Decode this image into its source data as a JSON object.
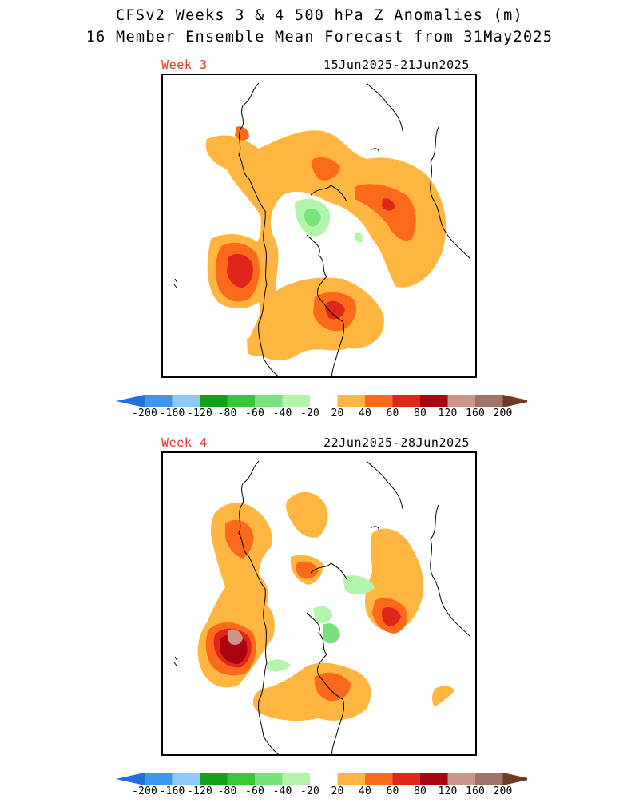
{
  "title": {
    "line1": "CFSv2 Weeks 3 & 4 500 hPa Z Anomalies (m)",
    "line2": "16 Member Ensemble Mean Forecast from 31May2025"
  },
  "panels": [
    {
      "week_label": "Week 3",
      "date_range": "15Jun2025-21Jun2025"
    },
    {
      "week_label": "Week 4",
      "date_range": "22Jun2025-28Jun2025"
    }
  ],
  "colorbar": {
    "ticks": [
      "-200",
      "-160",
      "-120",
      "-80",
      "-60",
      "-40",
      "-20",
      "20",
      "40",
      "60",
      "80",
      "120",
      "160",
      "200"
    ],
    "colors": [
      "#1f6fdc",
      "#3c97ee",
      "#8ec9f5",
      "#11a11b",
      "#37c837",
      "#7ae27a",
      "#b4f5ac",
      "#ffffff",
      "#ffb640",
      "#fa6a1a",
      "#e0251b",
      "#a8050c",
      "#c9968c",
      "#a07268",
      "#6e3a24"
    ]
  }
}
